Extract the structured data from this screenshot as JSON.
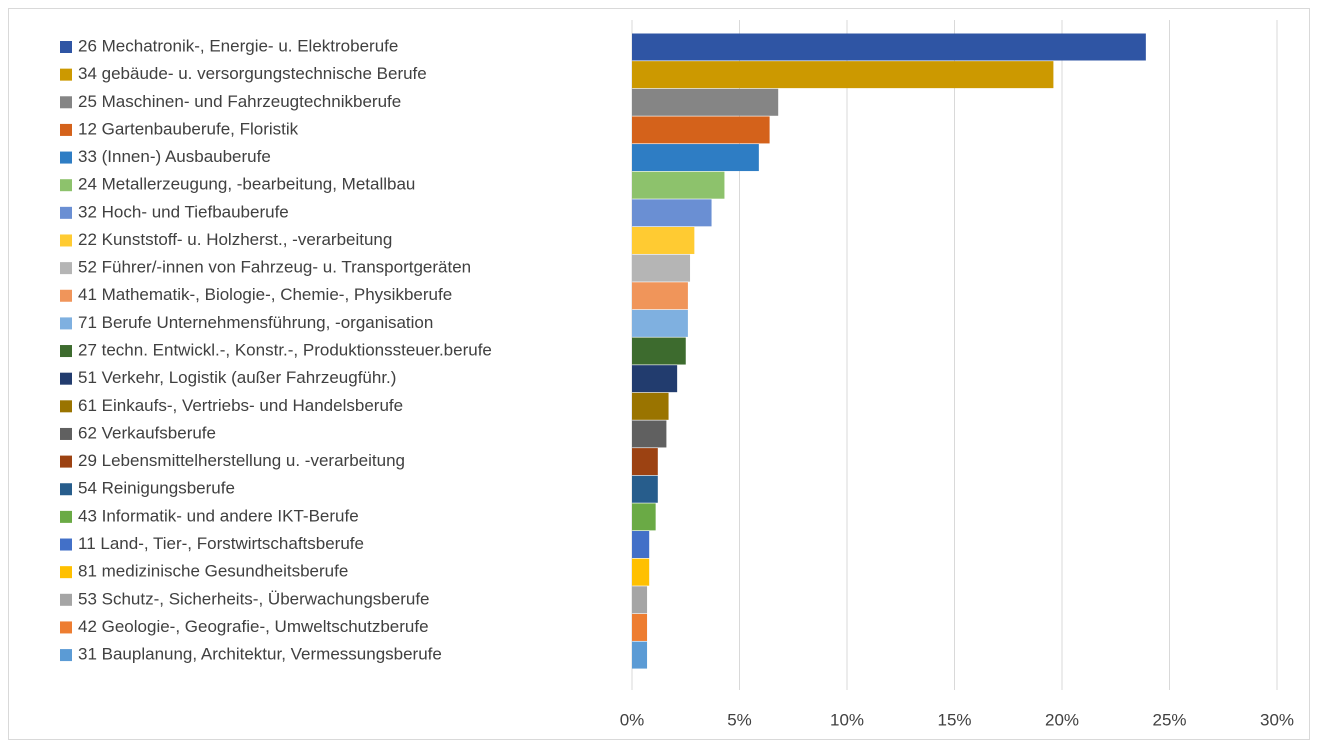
{
  "chart_data": {
    "type": "bar",
    "orientation": "horizontal",
    "grid": true,
    "categories": [
      "26 Mechatronik-, Energie- u. Elektroberufe",
      "34 gebäude- u. versorgungstechnische Berufe",
      "25 Maschinen- und Fahrzeugtechnikberufe",
      "12 Gartenbauberufe, Floristik",
      "33 (Innen-) Ausbauberufe",
      "24 Metallerzeugung, -bearbeitung, Metallbau",
      "32 Hoch- und Tiefbauberufe",
      "22 Kunststoff- u. Holzherst., -verarbeitung",
      "52 Führer/-innen von Fahrzeug- u. Transportgeräten",
      "41 Mathematik-, Biologie-, Chemie-, Physikberufe",
      "71 Berufe Unternehmensführung, -organisation",
      "27 techn. Entwickl.-, Konstr.-, Produktionssteuer.berufe",
      "51 Verkehr, Logistik (außer Fahrzeugführ.)",
      "61 Einkaufs-, Vertriebs- und Handelsberufe",
      "62 Verkaufsberufe",
      "29 Lebensmittelherstellung u. -verarbeitung",
      "54 Reinigungsberufe",
      "43 Informatik- und andere IKT-Berufe",
      "11 Land-, Tier-, Forstwirtschaftsberufe",
      "81 medizinische Gesundheitsberufe",
      "53 Schutz-, Sicherheits-, Überwachungsberufe",
      "42 Geologie-, Geografie-, Umweltschutzberufe",
      "31 Bauplanung, Architektur, Vermessungsberufe"
    ],
    "values": [
      23.9,
      19.6,
      6.8,
      6.4,
      5.9,
      4.3,
      3.7,
      2.9,
      2.7,
      2.6,
      2.6,
      2.5,
      2.1,
      1.7,
      1.6,
      1.2,
      1.2,
      1.1,
      0.8,
      0.8,
      0.7,
      0.7,
      0.7
    ],
    "colors": [
      "#2f55a4",
      "#cc9900",
      "#858585",
      "#d4621b",
      "#2e7dc4",
      "#8dc26c",
      "#6a8fd3",
      "#ffcb32",
      "#b5b5b5",
      "#f0955a",
      "#7fb0e0",
      "#3d6b2e",
      "#223c6e",
      "#9a7400",
      "#606060",
      "#9c4212",
      "#275d8c",
      "#6aaa45",
      "#4270c8",
      "#ffc000",
      "#a5a5a5",
      "#ed7d31",
      "#5b9bd5"
    ],
    "xlim": [
      0,
      30
    ],
    "xticks": [
      {
        "value": 0,
        "label": "0%"
      },
      {
        "value": 5,
        "label": "5%"
      },
      {
        "value": 10,
        "label": "10%"
      },
      {
        "value": 15,
        "label": "15%"
      },
      {
        "value": 20,
        "label": "20%"
      },
      {
        "value": 25,
        "label": "25%"
      },
      {
        "value": 30,
        "label": "30%"
      }
    ]
  }
}
